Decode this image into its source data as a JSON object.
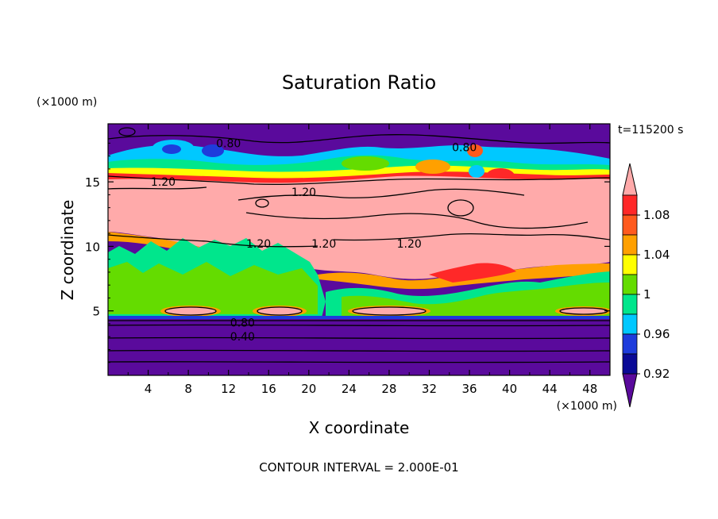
{
  "chart_data": {
    "type": "heatmap",
    "title": "Saturation Ratio",
    "xlabel": "X coordinate",
    "ylabel": "Z coordinate",
    "x_unit": "(×1000 m)",
    "y_unit": "(×1000 m)",
    "time_label": "t=115200 s",
    "footer": "CONTOUR INTERVAL = 2.000E-01",
    "xlim": [
      0,
      50
    ],
    "ylim": [
      0,
      19.5
    ],
    "x_ticks": [
      "4",
      "8",
      "12",
      "16",
      "20",
      "24",
      "28",
      "32",
      "36",
      "40",
      "44",
      "48"
    ],
    "y_ticks": [
      "5",
      "10",
      "15"
    ],
    "colorbar": {
      "tick_labels": [
        "1.08",
        "1.04",
        "1",
        "0.96",
        "0.92"
      ],
      "levels": [
        0.9,
        0.92,
        0.94,
        0.96,
        0.98,
        1.0,
        1.02,
        1.04,
        1.06,
        1.08
      ],
      "colors": [
        "#5a0a9c",
        "#0a0a96",
        "#1e3cdc",
        "#00c8ff",
        "#00e68c",
        "#64dc00",
        "#ffff00",
        "#ffa000",
        "#ff5a1e",
        "#ff2828",
        "#ffaaaa"
      ]
    },
    "contour_labels": [
      {
        "text": "0.80",
        "x": 12,
        "z": 18
      },
      {
        "text": "0.80",
        "x": 35.5,
        "z": 17.7
      },
      {
        "text": "1.20",
        "x": 5.5,
        "z": 15
      },
      {
        "text": "1.20",
        "x": 19.5,
        "z": 14.2
      },
      {
        "text": "1.20",
        "x": 15,
        "z": 10.2
      },
      {
        "text": "1.20",
        "x": 21.5,
        "z": 10.2
      },
      {
        "text": "1.20",
        "x": 30,
        "z": 10.2
      },
      {
        "text": "0.80",
        "x": 13.4,
        "z": 4.1
      },
      {
        "text": "0.40",
        "x": 13.4,
        "z": 3
      }
    ]
  }
}
